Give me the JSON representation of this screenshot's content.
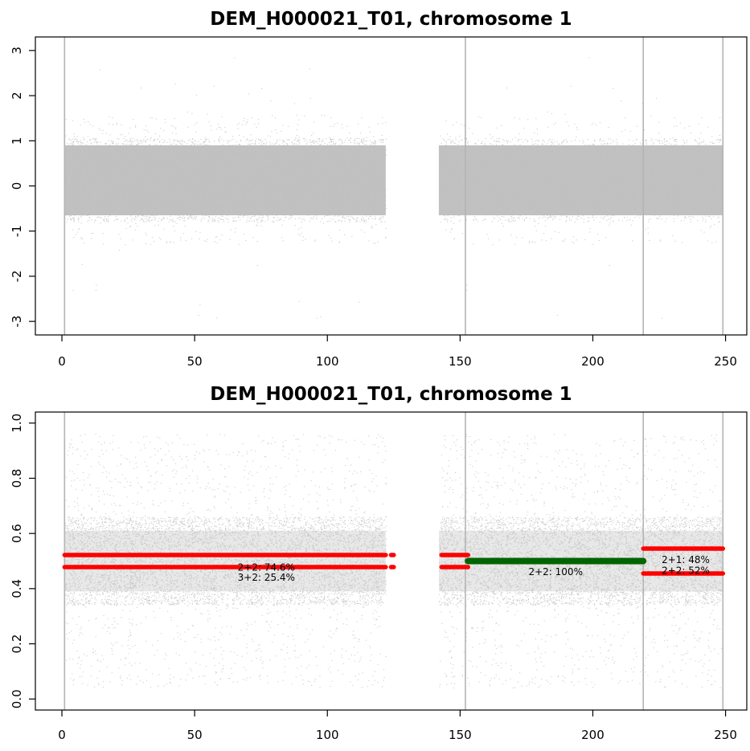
{
  "chart_data": [
    {
      "type": "scatter",
      "title": "DEM_H000021_T01, chromosome 1",
      "xlabel": "",
      "ylabel": "",
      "xlim": [
        -10,
        258
      ],
      "ylim": [
        -3.3,
        3.3
      ],
      "x_ticks": [
        0,
        50,
        100,
        150,
        200,
        250
      ],
      "y_ticks": [
        -3,
        -2,
        -1,
        0,
        1,
        2,
        3
      ],
      "vertical_lines": [
        1,
        152,
        219,
        249
      ],
      "point_color": "#bebebe",
      "density_bands": [
        {
          "x_start": 1,
          "x_end": 122,
          "core_low": -0.8,
          "core_high": 1.05,
          "spread_low": -1.3,
          "spread_high": 1.6
        },
        {
          "x_start": 142,
          "x_end": 249,
          "core_low": -0.8,
          "core_high": 1.05,
          "spread_low": -1.3,
          "spread_high": 1.6
        }
      ],
      "grid": false
    },
    {
      "type": "scatter",
      "title": "DEM_H000021_T01, chromosome 1",
      "xlabel": "",
      "ylabel": "",
      "xlim": [
        -10,
        258
      ],
      "ylim": [
        -0.04,
        1.04
      ],
      "x_ticks": [
        0,
        50,
        100,
        150,
        200,
        250
      ],
      "y_ticks": [
        "0.0",
        "0.2",
        "0.4",
        "0.6",
        "0.8",
        "1.0"
      ],
      "vertical_lines": [
        1,
        152,
        219,
        249
      ],
      "point_color": "#bebebe",
      "density_bands": [
        {
          "x_start": 1,
          "x_end": 122,
          "core_low": 0.34,
          "core_high": 0.66
        },
        {
          "x_start": 142,
          "x_end": 249,
          "core_low": 0.34,
          "core_high": 0.66
        }
      ],
      "segments": [
        {
          "x_start": 1,
          "x_end": 122,
          "y": 0.522,
          "color": "#ff0000"
        },
        {
          "x_start": 1,
          "x_end": 122,
          "y": 0.478,
          "color": "#ff0000"
        },
        {
          "x_start": 124,
          "x_end": 125,
          "y": 0.522,
          "color": "#ff0000"
        },
        {
          "x_start": 124,
          "x_end": 125,
          "y": 0.478,
          "color": "#ff0000"
        },
        {
          "x_start": 143,
          "x_end": 153,
          "y": 0.522,
          "color": "#ff0000"
        },
        {
          "x_start": 143,
          "x_end": 153,
          "y": 0.478,
          "color": "#ff0000"
        },
        {
          "x_start": 153,
          "x_end": 219,
          "y": 0.5,
          "color": "#006400"
        },
        {
          "x_start": 219,
          "x_end": 249,
          "y": 0.545,
          "color": "#ff0000"
        },
        {
          "x_start": 219,
          "x_end": 249,
          "y": 0.455,
          "color": "#ff0000"
        }
      ],
      "annotations": [
        {
          "text": "2+2: 74.6%",
          "x": 77,
          "y": 0.477
        },
        {
          "text": "3+2: 25.4%",
          "x": 77,
          "y": 0.44
        },
        {
          "text": "2+2: 100%",
          "x": 186,
          "y": 0.46
        },
        {
          "text": "2+1: 48%",
          "x": 235,
          "y": 0.505
        },
        {
          "text": "2+2: 52%",
          "x": 235,
          "y": 0.465
        }
      ],
      "grid": false
    }
  ]
}
